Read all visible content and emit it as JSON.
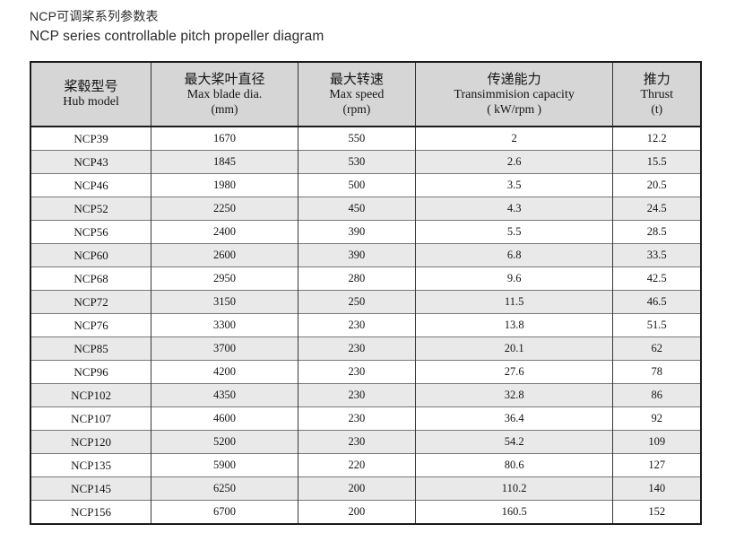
{
  "page": {
    "title_zh": "NCP可调桨系列参数表",
    "title_en": "NCP series controllable pitch propeller diagram"
  },
  "colors": {
    "header_bg": "#d6d6d6",
    "stripe_bg": "#e9e9e9",
    "outer_border": "#1b1b1b",
    "text": "#141414"
  },
  "table": {
    "columns": [
      {
        "zh": "桨毂型号",
        "en": "Hub model",
        "unit": ""
      },
      {
        "zh": "最大桨叶直径",
        "en": "Max blade dia.",
        "unit": "(mm)"
      },
      {
        "zh": "最大转速",
        "en": "Max speed",
        "unit": "(rpm)"
      },
      {
        "zh": "传递能力",
        "en": "Transimmision capacity",
        "unit": "( kW/rpm )"
      },
      {
        "zh": "推力",
        "en": "Thrust",
        "unit": "(t)"
      }
    ],
    "rows": [
      [
        "NCP39",
        "1670",
        "550",
        "2",
        "12.2"
      ],
      [
        "NCP43",
        "1845",
        "530",
        "2.6",
        "15.5"
      ],
      [
        "NCP46",
        "1980",
        "500",
        "3.5",
        "20.5"
      ],
      [
        "NCP52",
        "2250",
        "450",
        "4.3",
        "24.5"
      ],
      [
        "NCP56",
        "2400",
        "390",
        "5.5",
        "28.5"
      ],
      [
        "NCP60",
        "2600",
        "390",
        "6.8",
        "33.5"
      ],
      [
        "NCP68",
        "2950",
        "280",
        "9.6",
        "42.5"
      ],
      [
        "NCP72",
        "3150",
        "250",
        "11.5",
        "46.5"
      ],
      [
        "NCP76",
        "3300",
        "230",
        "13.8",
        "51.5"
      ],
      [
        "NCP85",
        "3700",
        "230",
        "20.1",
        "62"
      ],
      [
        "NCP96",
        "4200",
        "230",
        "27.6",
        "78"
      ],
      [
        "NCP102",
        "4350",
        "230",
        "32.8",
        "86"
      ],
      [
        "NCP107",
        "4600",
        "230",
        "36.4",
        "92"
      ],
      [
        "NCP120",
        "5200",
        "230",
        "54.2",
        "109"
      ],
      [
        "NCP135",
        "5900",
        "220",
        "80.6",
        "127"
      ],
      [
        "NCP145",
        "6250",
        "200",
        "110.2",
        "140"
      ],
      [
        "NCP156",
        "6700",
        "200",
        "160.5",
        "152"
      ]
    ]
  }
}
